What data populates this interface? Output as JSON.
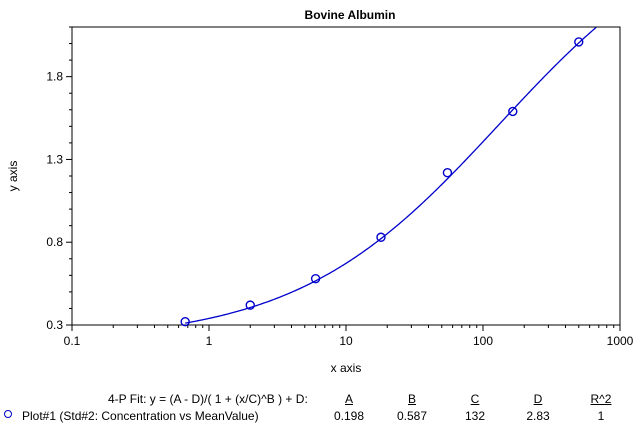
{
  "chart_data": {
    "type": "scatter",
    "title": "Bovine Albumin",
    "xlabel": "x axis",
    "ylabel": "y axis",
    "x_scale": "log",
    "xlim": [
      0.1,
      1000
    ],
    "ylim": [
      0.3,
      2.1
    ],
    "x_ticks": [
      "0.1",
      "1",
      "10",
      "100",
      "1000"
    ],
    "y_ticks": [
      "0.3",
      "0.8",
      "1.3",
      "1.8"
    ],
    "y_tick_values": [
      0.3,
      0.8,
      1.3,
      1.8
    ],
    "series": [
      {
        "name": "Plot#1 (Std#2: Concentration vs MeanValue)",
        "x": [
          0.67,
          2,
          6,
          18,
          55,
          165,
          500
        ],
        "y": [
          0.32,
          0.42,
          0.58,
          0.83,
          1.22,
          1.59,
          2.01
        ],
        "marker": "circle",
        "color": "#0000cc"
      }
    ],
    "fit": {
      "A": 0.198,
      "B": 0.587,
      "C": 132,
      "D": 2.83,
      "R2": 1
    }
  },
  "fit_table": {
    "equation": "4-P Fit: y = (A - D)/( 1 + (x/C)^B ) + D:",
    "headers": [
      "A",
      "B",
      "C",
      "D",
      "R^2"
    ],
    "row_label": "Plot#1 (Std#2: Concentration vs MeanValue)",
    "row_values": [
      "0.198",
      "0.587",
      "132",
      "2.83",
      "1"
    ]
  }
}
